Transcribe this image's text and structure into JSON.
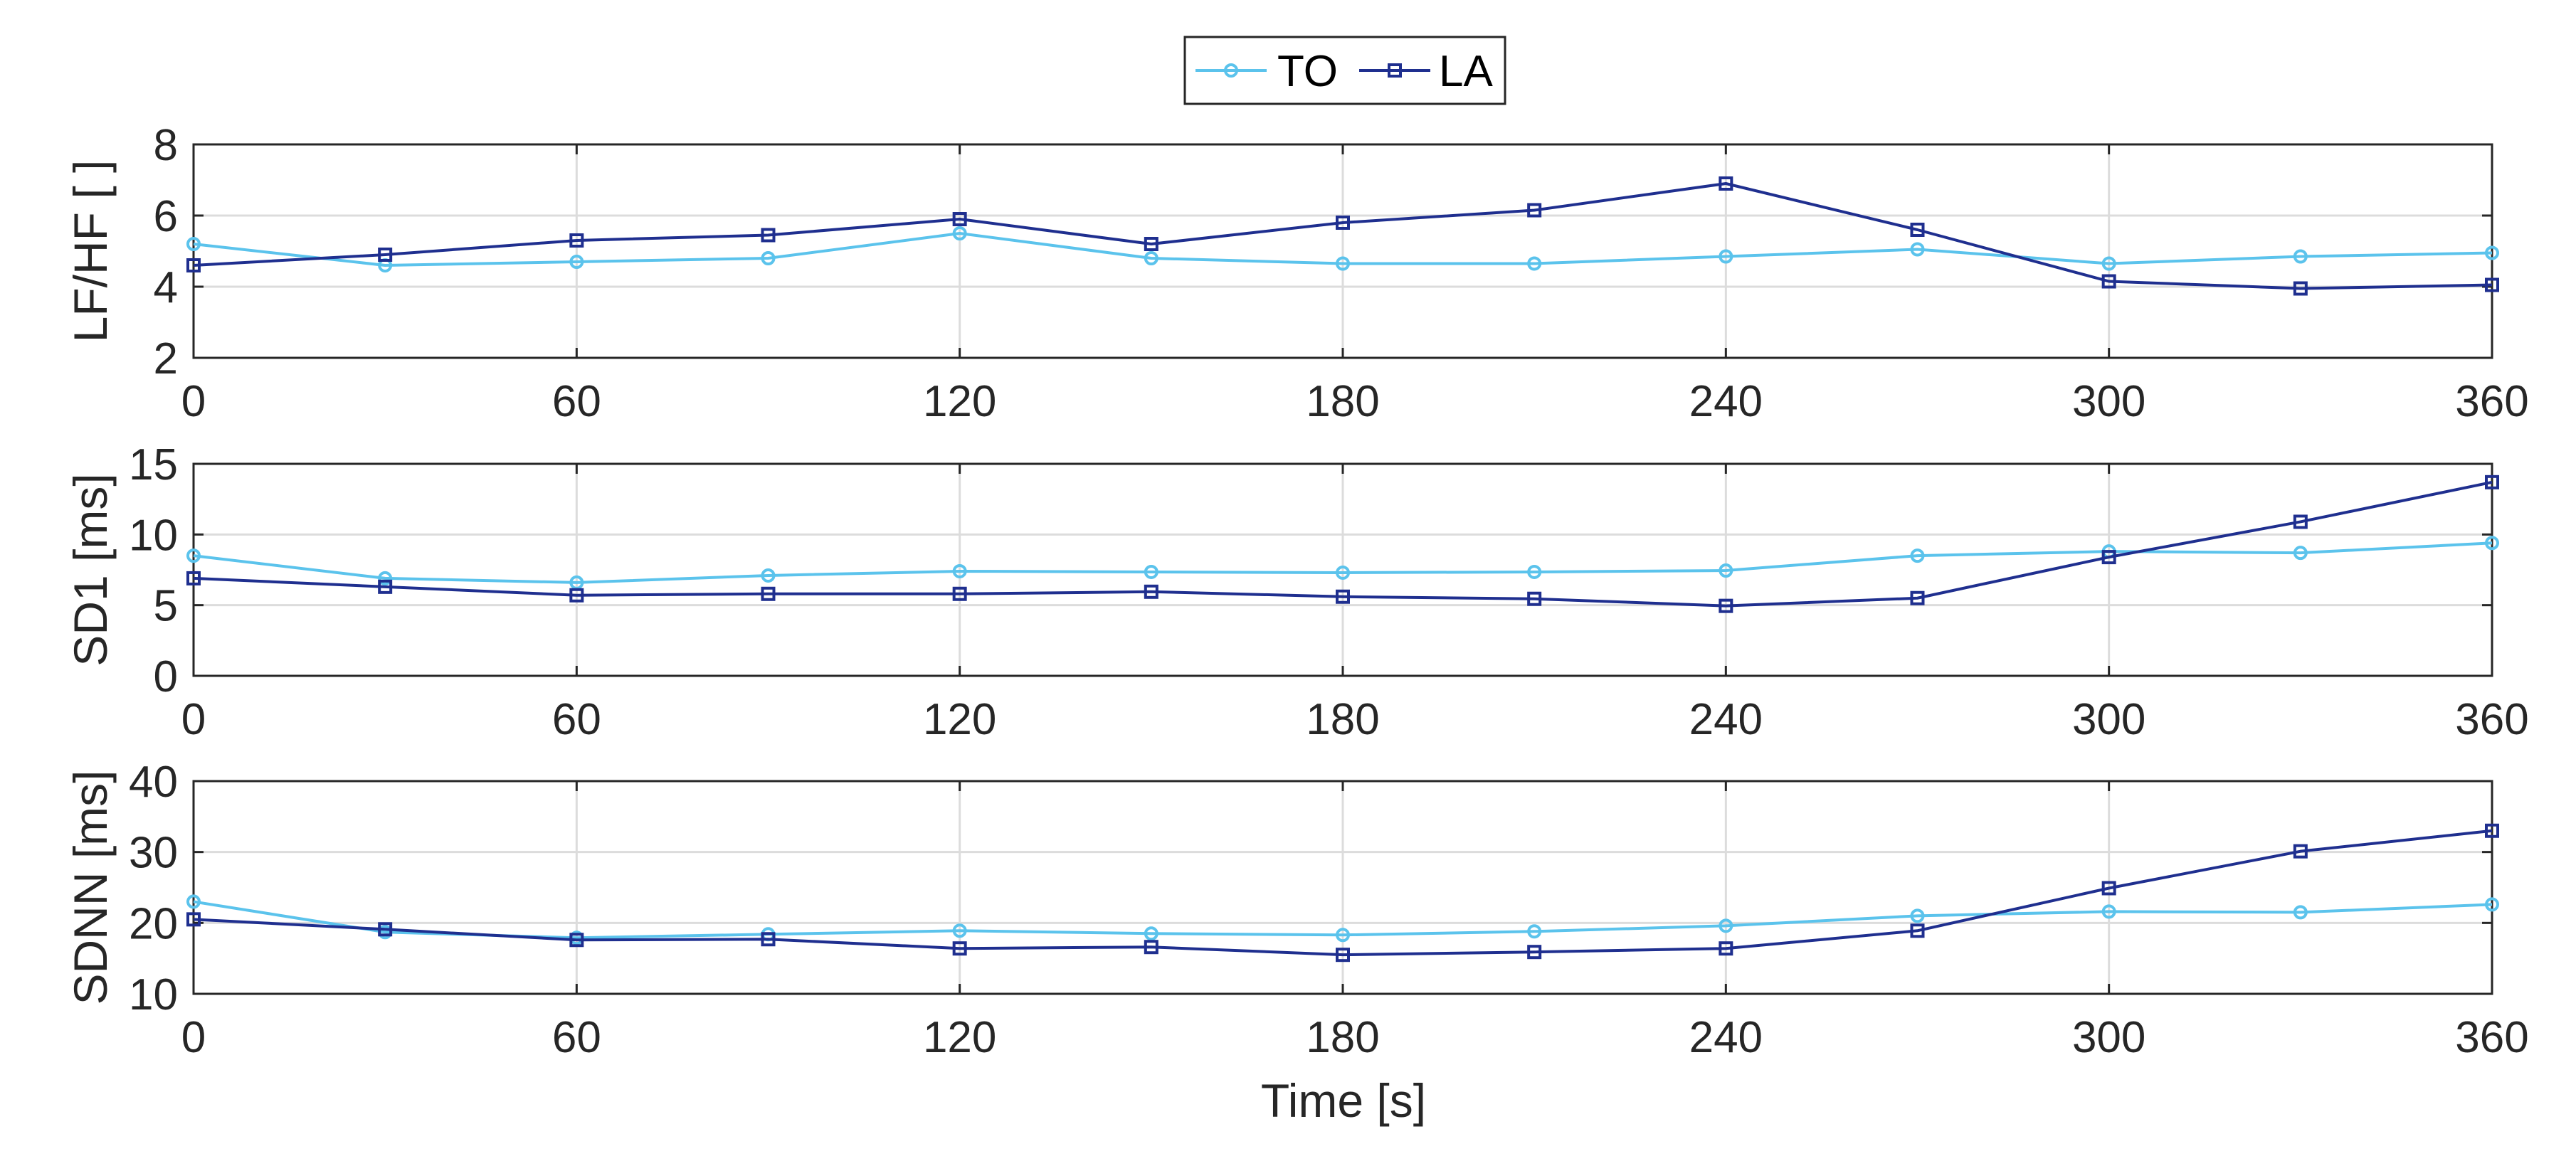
{
  "chart_data": {
    "type": "line",
    "x": [
      0,
      30,
      60,
      90,
      120,
      150,
      180,
      210,
      240,
      270,
      300,
      330,
      360
    ],
    "xlabel": "Time [s]",
    "xlim": [
      0,
      360
    ],
    "xticks": [
      0,
      60,
      120,
      180,
      240,
      300,
      360
    ],
    "legend": {
      "placement": "top-center",
      "entries": [
        {
          "name": "TO",
          "color": "#5bc3ec",
          "marker": "circle"
        },
        {
          "name": "LA",
          "color": "#1f2f8f",
          "marker": "square"
        }
      ]
    },
    "grid": true,
    "panels": [
      {
        "ylabel": "LF/HF [ ]",
        "ylim": [
          2,
          8
        ],
        "yticks": [
          2,
          4,
          6,
          8
        ],
        "series": [
          {
            "name": "TO",
            "values": [
              5.2,
              4.6,
              4.7,
              4.8,
              5.5,
              4.8,
              4.65,
              4.65,
              4.85,
              5.05,
              4.65,
              4.85,
              4.95
            ]
          },
          {
            "name": "LA",
            "values": [
              4.6,
              4.9,
              5.3,
              5.45,
              5.9,
              5.2,
              5.8,
              6.15,
              6.9,
              5.6,
              4.15,
              3.95,
              4.05
            ]
          }
        ]
      },
      {
        "ylabel": "SD1 [ms]",
        "ylim": [
          0,
          15
        ],
        "yticks": [
          0,
          5,
          10,
          15
        ],
        "series": [
          {
            "name": "TO",
            "values": [
              8.5,
              6.9,
              6.6,
              7.1,
              7.4,
              7.35,
              7.3,
              7.35,
              7.45,
              8.5,
              8.8,
              8.7,
              9.4
            ]
          },
          {
            "name": "LA",
            "values": [
              6.9,
              6.3,
              5.7,
              5.8,
              5.8,
              5.95,
              5.6,
              5.45,
              4.95,
              5.5,
              8.4,
              10.9,
              13.7
            ]
          }
        ]
      },
      {
        "ylabel": "SDNN [ms]",
        "ylim": [
          10,
          40
        ],
        "yticks": [
          10,
          20,
          30,
          40
        ],
        "series": [
          {
            "name": "TO",
            "values": [
              23,
              18.7,
              17.9,
              18.4,
              18.9,
              18.5,
              18.3,
              18.8,
              19.6,
              21,
              21.6,
              21.5,
              22.6
            ]
          },
          {
            "name": "LA",
            "values": [
              20.5,
              19.1,
              17.6,
              17.7,
              16.4,
              16.6,
              15.5,
              15.9,
              16.4,
              18.9,
              24.9,
              30.1,
              33
            ]
          }
        ]
      }
    ]
  }
}
